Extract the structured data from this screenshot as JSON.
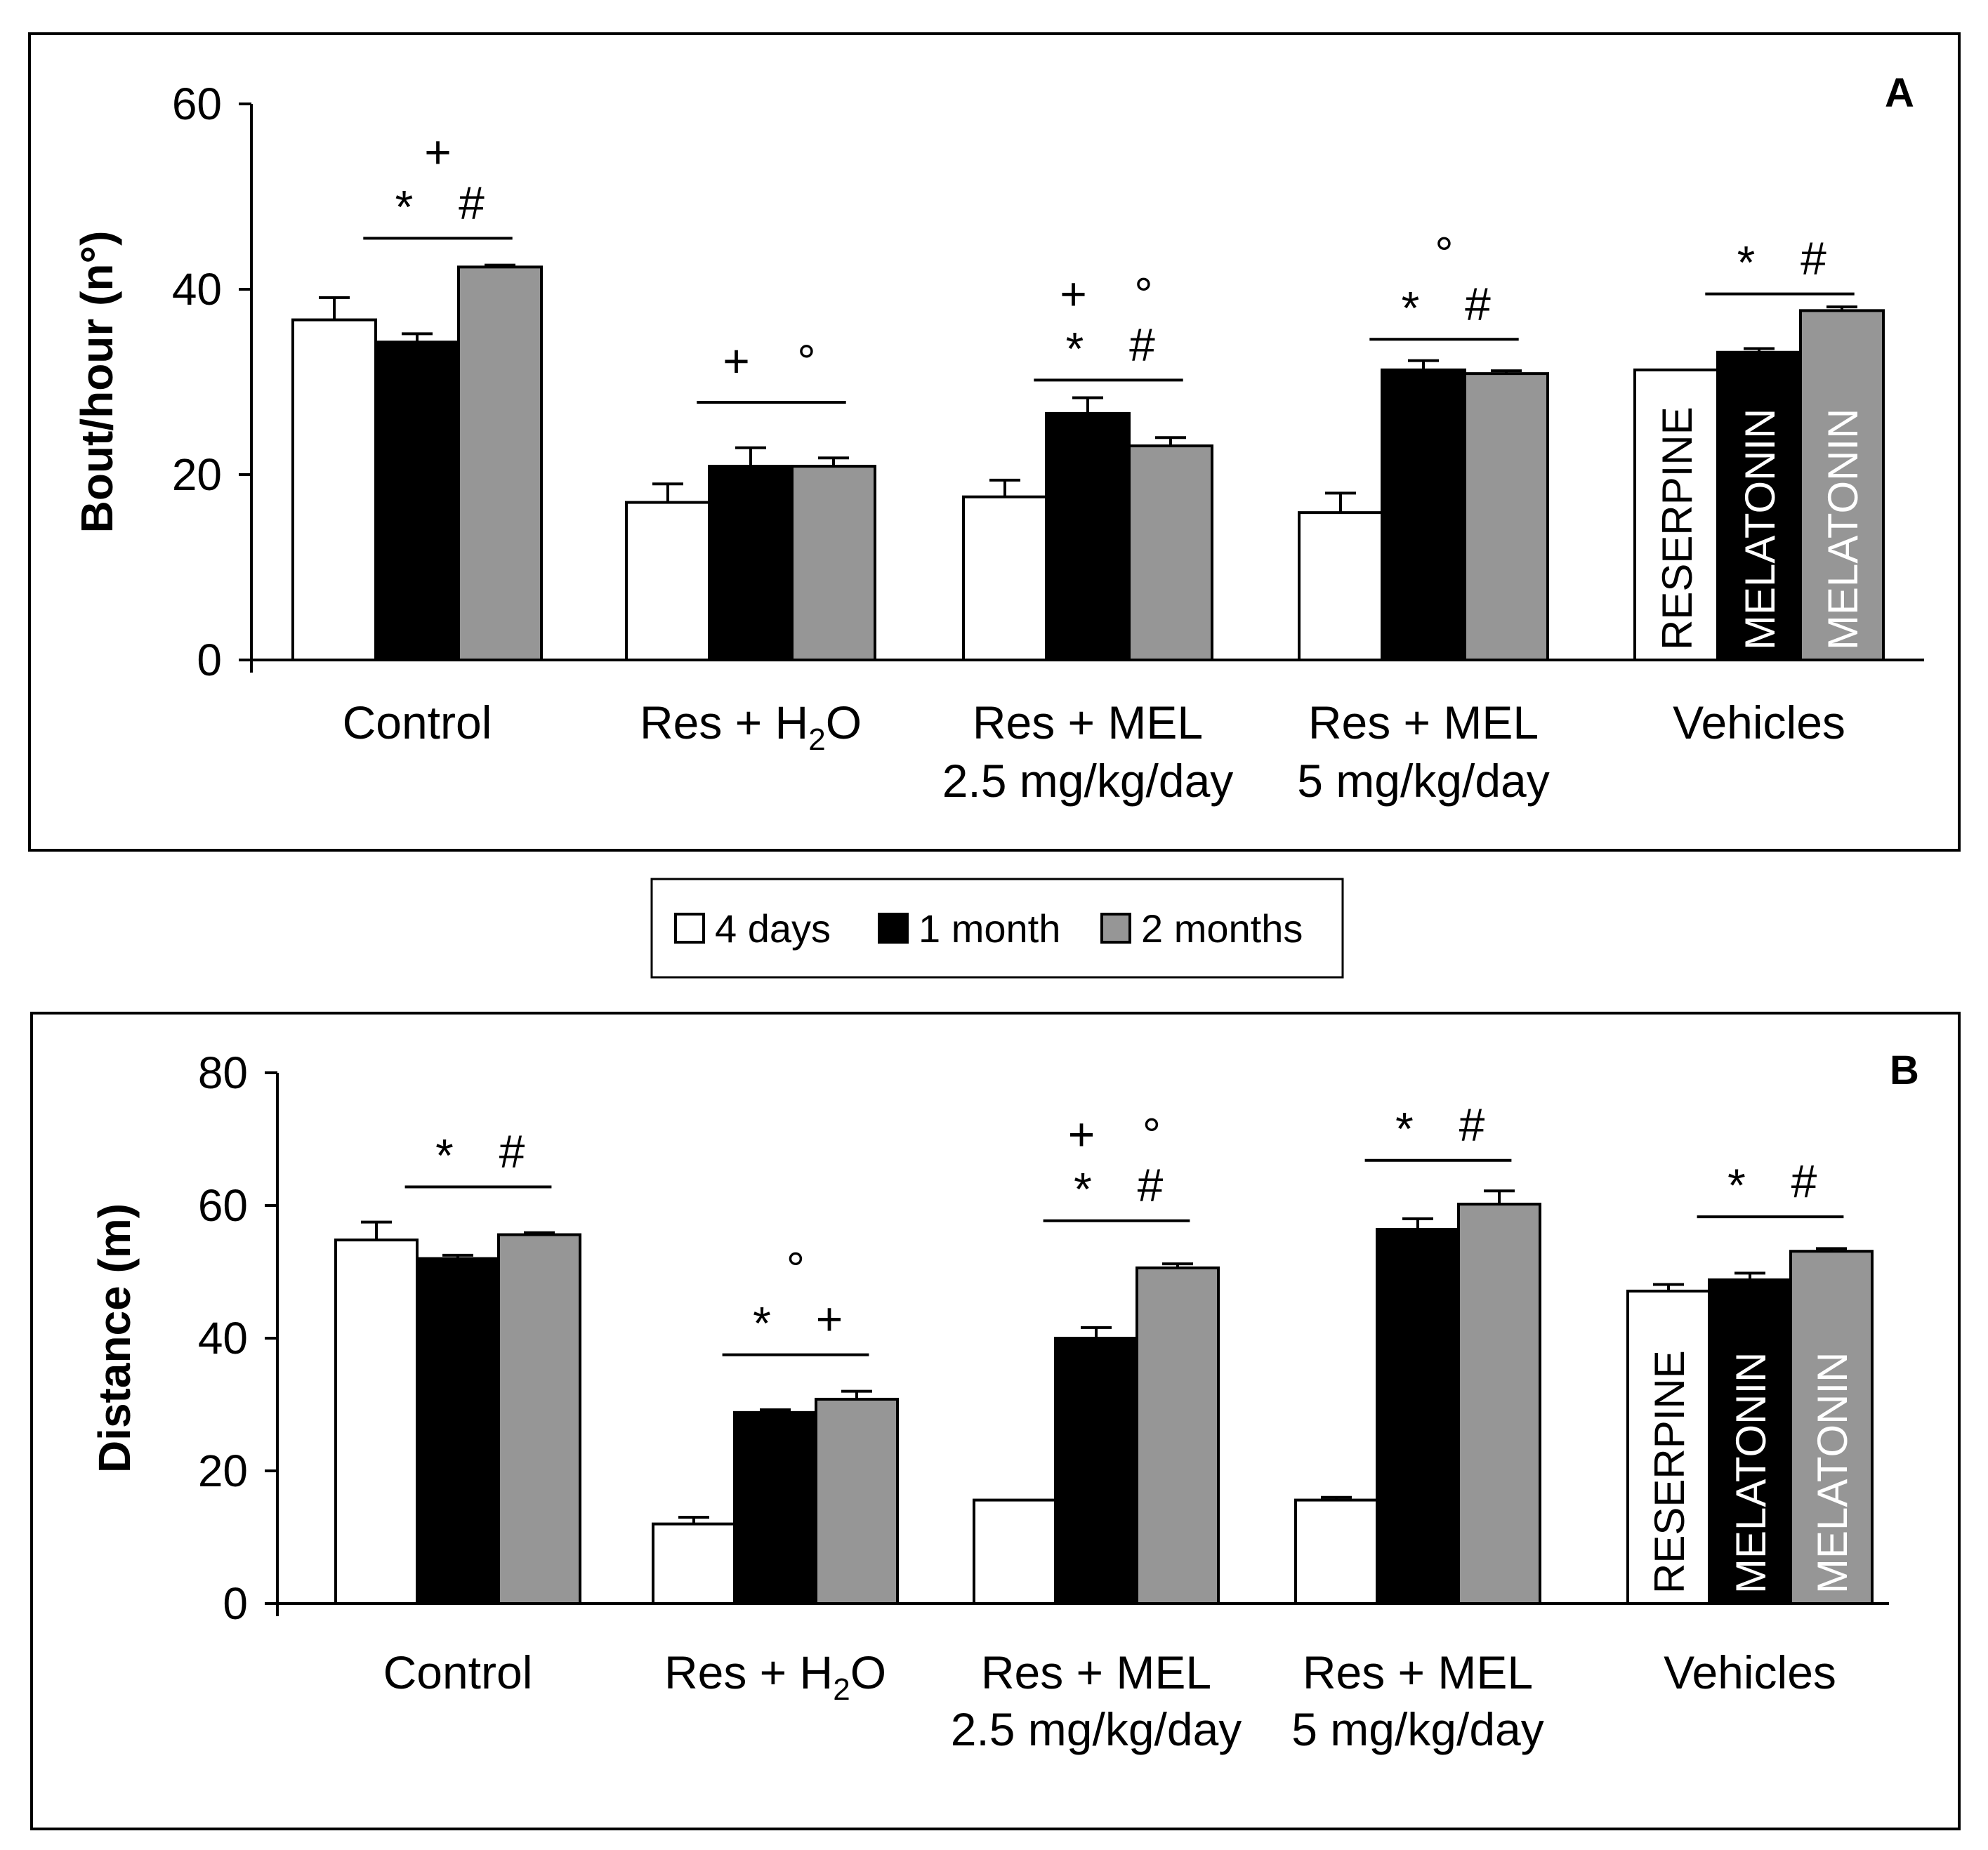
{
  "legend": {
    "items": [
      {
        "label": "4 days",
        "color": "#ffffff"
      },
      {
        "label": "1 month",
        "color": "#000000"
      },
      {
        "label": "2 months",
        "color": "#969696"
      }
    ]
  },
  "series_colors": [
    "#ffffff",
    "#000000",
    "#969696"
  ],
  "chart_data": [
    {
      "type": "bar",
      "panel": "A",
      "ylabel": "Bout/hour (n°)",
      "ylim": [
        0,
        60
      ],
      "yticks": [
        "0",
        "20",
        "40",
        "60"
      ],
      "categories": [
        {
          "line1": "Control",
          "line2": ""
        },
        {
          "line1": "Res + H",
          "sub": "2",
          "tail": "O",
          "line2": ""
        },
        {
          "line1": "Res + MEL",
          "line2": "2.5 mg/kg/day"
        },
        {
          "line1": "Res + MEL",
          "line2": "5 mg/kg/day"
        },
        {
          "line1": "Vehicles",
          "line2": ""
        }
      ],
      "series": [
        {
          "name": "4 days",
          "values": [
            36.7,
            17.0,
            17.6,
            15.9,
            31.3
          ],
          "errors": [
            2.4,
            2.0,
            1.8,
            2.1,
            0.0
          ]
        },
        {
          "name": "1 month",
          "values": [
            34.3,
            20.9,
            26.6,
            31.3,
            33.2
          ],
          "errors": [
            0.9,
            2.0,
            1.7,
            1.0,
            0.4
          ]
        },
        {
          "name": "2 months",
          "values": [
            42.4,
            20.9,
            23.1,
            30.9,
            37.7
          ],
          "errors": [
            0.2,
            0.9,
            0.9,
            0.3,
            0.4
          ]
        }
      ],
      "bar_text": [
        "RESERPINE",
        "MELATONIN",
        "MELATONIN"
      ],
      "annotations": [
        {
          "group": 0,
          "line_y": 45.5,
          "top": [
            "+"
          ],
          "bottom": [
            "*",
            "#"
          ]
        },
        {
          "group": 1,
          "line_y": 27.8,
          "top": [
            "+",
            "°"
          ],
          "bottom": []
        },
        {
          "group": 2,
          "line_y": 30.2,
          "top": [
            "+",
            "°"
          ],
          "bottom": [
            "*",
            "#"
          ]
        },
        {
          "group": 3,
          "line_y": 34.6,
          "top": [
            "°"
          ],
          "bottom": [
            "*",
            "#"
          ]
        },
        {
          "group": 4,
          "line_y": 39.5,
          "top": [],
          "bottom": [
            "*",
            "#"
          ]
        }
      ]
    },
    {
      "type": "bar",
      "panel": "B",
      "ylabel": "Distance (m)",
      "ylim": [
        0,
        80
      ],
      "yticks": [
        "0",
        "20",
        "40",
        "60",
        "80"
      ],
      "categories": [
        {
          "line1": "Control",
          "line2": ""
        },
        {
          "line1": "Res + H",
          "sub": "2",
          "tail": "O",
          "line2": ""
        },
        {
          "line1": "Res + MEL",
          "line2": "2.5 mg/kg/day"
        },
        {
          "line1": "Res + MEL",
          "line2": "5 mg/kg/day"
        },
        {
          "line1": "Vehicles",
          "line2": ""
        }
      ],
      "series": [
        {
          "name": "4 days",
          "values": [
            54.8,
            12.0,
            15.6,
            15.6,
            47.1
          ],
          "errors": [
            2.7,
            1.0,
            0.0,
            0.4,
            1.0
          ]
        },
        {
          "name": "1 month",
          "values": [
            52.0,
            28.8,
            40.0,
            56.4,
            48.8
          ],
          "errors": [
            0.5,
            0.4,
            1.6,
            1.6,
            1.0
          ]
        },
        {
          "name": "2 months",
          "values": [
            55.6,
            30.8,
            50.6,
            60.2,
            53.1
          ],
          "errors": [
            0.3,
            1.2,
            0.6,
            2.0,
            0.4
          ]
        }
      ],
      "bar_text": [
        "RESERPINE",
        "MELATONIN",
        "MELATONIN"
      ],
      "annotations": [
        {
          "group": 0,
          "line_y": 62.8,
          "top": [],
          "bottom": [
            "*",
            "#"
          ]
        },
        {
          "group": 1,
          "line_y": 37.5,
          "top": [
            "°"
          ],
          "bottom": [
            "*",
            "+"
          ]
        },
        {
          "group": 2,
          "line_y": 57.7,
          "top": [
            "+",
            "°"
          ],
          "bottom": [
            "*",
            "#"
          ]
        },
        {
          "group": 3,
          "line_y": 66.8,
          "top": [],
          "bottom": [
            "*",
            "#"
          ]
        },
        {
          "group": 4,
          "line_y": 58.3,
          "top": [],
          "bottom": [
            "*",
            "#"
          ]
        }
      ]
    }
  ]
}
